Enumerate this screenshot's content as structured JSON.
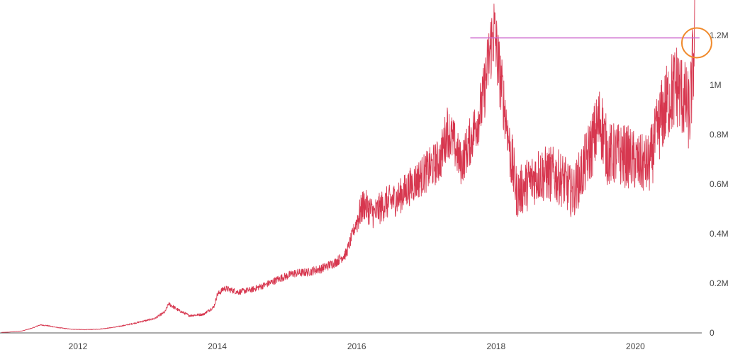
{
  "chart_data": {
    "type": "line",
    "title": "",
    "xlabel": "",
    "ylabel": "",
    "x_range": [
      2010.9,
      2020.85
    ],
    "ylim": [
      0,
      1320000
    ],
    "grid": false,
    "x_ticks": [
      {
        "value": 2012,
        "label": "2012"
      },
      {
        "value": 2014,
        "label": "2014"
      },
      {
        "value": 2016,
        "label": "2016"
      },
      {
        "value": 2018,
        "label": "2018"
      },
      {
        "value": 2020,
        "label": "2020"
      }
    ],
    "y_ticks": [
      {
        "value": 0,
        "label": "0"
      },
      {
        "value": 200000,
        "label": "0.2M"
      },
      {
        "value": 400000,
        "label": "0.4M"
      },
      {
        "value": 600000,
        "label": "0.6M"
      },
      {
        "value": 800000,
        "label": "0.8M"
      },
      {
        "value": 1000000,
        "label": "1M"
      },
      {
        "value": 1200000,
        "label": "1.2M"
      }
    ],
    "series": [
      {
        "color": "#d7374f",
        "points": [
          [
            2010.9,
            2000
          ],
          [
            2011.0,
            3000
          ],
          [
            2011.2,
            8000
          ],
          [
            2011.35,
            20000
          ],
          [
            2011.45,
            32000
          ],
          [
            2011.55,
            30000
          ],
          [
            2011.7,
            22000
          ],
          [
            2011.9,
            15000
          ],
          [
            2012.1,
            13000
          ],
          [
            2012.3,
            15000
          ],
          [
            2012.5,
            22000
          ],
          [
            2012.7,
            32000
          ],
          [
            2012.9,
            45000
          ],
          [
            2013.1,
            58000
          ],
          [
            2013.25,
            85000
          ],
          [
            2013.3,
            118000
          ],
          [
            2013.45,
            90000
          ],
          [
            2013.6,
            70000
          ],
          [
            2013.8,
            75000
          ],
          [
            2013.95,
            105000
          ],
          [
            2014.0,
            155000
          ],
          [
            2014.1,
            180000
          ],
          [
            2014.3,
            165000
          ],
          [
            2014.5,
            175000
          ],
          [
            2014.7,
            195000
          ],
          [
            2014.9,
            220000
          ],
          [
            2015.1,
            240000
          ],
          [
            2015.3,
            245000
          ],
          [
            2015.5,
            260000
          ],
          [
            2015.7,
            285000
          ],
          [
            2015.85,
            320000
          ],
          [
            2016.0,
            450000
          ],
          [
            2016.1,
            520000
          ],
          [
            2016.25,
            480000
          ],
          [
            2016.4,
            520000
          ],
          [
            2016.6,
            545000
          ],
          [
            2016.8,
            600000
          ],
          [
            2017.0,
            650000
          ],
          [
            2017.2,
            700000
          ],
          [
            2017.3,
            820000
          ],
          [
            2017.4,
            760000
          ],
          [
            2017.5,
            680000
          ],
          [
            2017.65,
            790000
          ],
          [
            2017.8,
            920000
          ],
          [
            2017.92,
            1150000
          ],
          [
            2017.97,
            1220000
          ],
          [
            2018.05,
            1050000
          ],
          [
            2018.15,
            850000
          ],
          [
            2018.22,
            700000
          ],
          [
            2018.3,
            560000
          ],
          [
            2018.45,
            600000
          ],
          [
            2018.6,
            640000
          ],
          [
            2018.8,
            640000
          ],
          [
            2018.95,
            620000
          ],
          [
            2019.1,
            560000
          ],
          [
            2019.25,
            660000
          ],
          [
            2019.4,
            780000
          ],
          [
            2019.5,
            860000
          ],
          [
            2019.6,
            720000
          ],
          [
            2019.75,
            720000
          ],
          [
            2019.9,
            710000
          ],
          [
            2020.05,
            680000
          ],
          [
            2020.2,
            680000
          ],
          [
            2020.35,
            850000
          ],
          [
            2020.5,
            960000
          ],
          [
            2020.6,
            1000000
          ],
          [
            2020.7,
            940000
          ],
          [
            2020.78,
            880000
          ],
          [
            2020.85,
            1180000
          ]
        ]
      }
    ],
    "annotations": [
      {
        "type": "hline",
        "y": 1190000,
        "x_from": 2017.63,
        "x_to": 2020.92,
        "color": "#cc66cc"
      },
      {
        "type": "circle",
        "x": 2020.88,
        "y": 1190000,
        "color": "#f08a2c"
      }
    ]
  }
}
